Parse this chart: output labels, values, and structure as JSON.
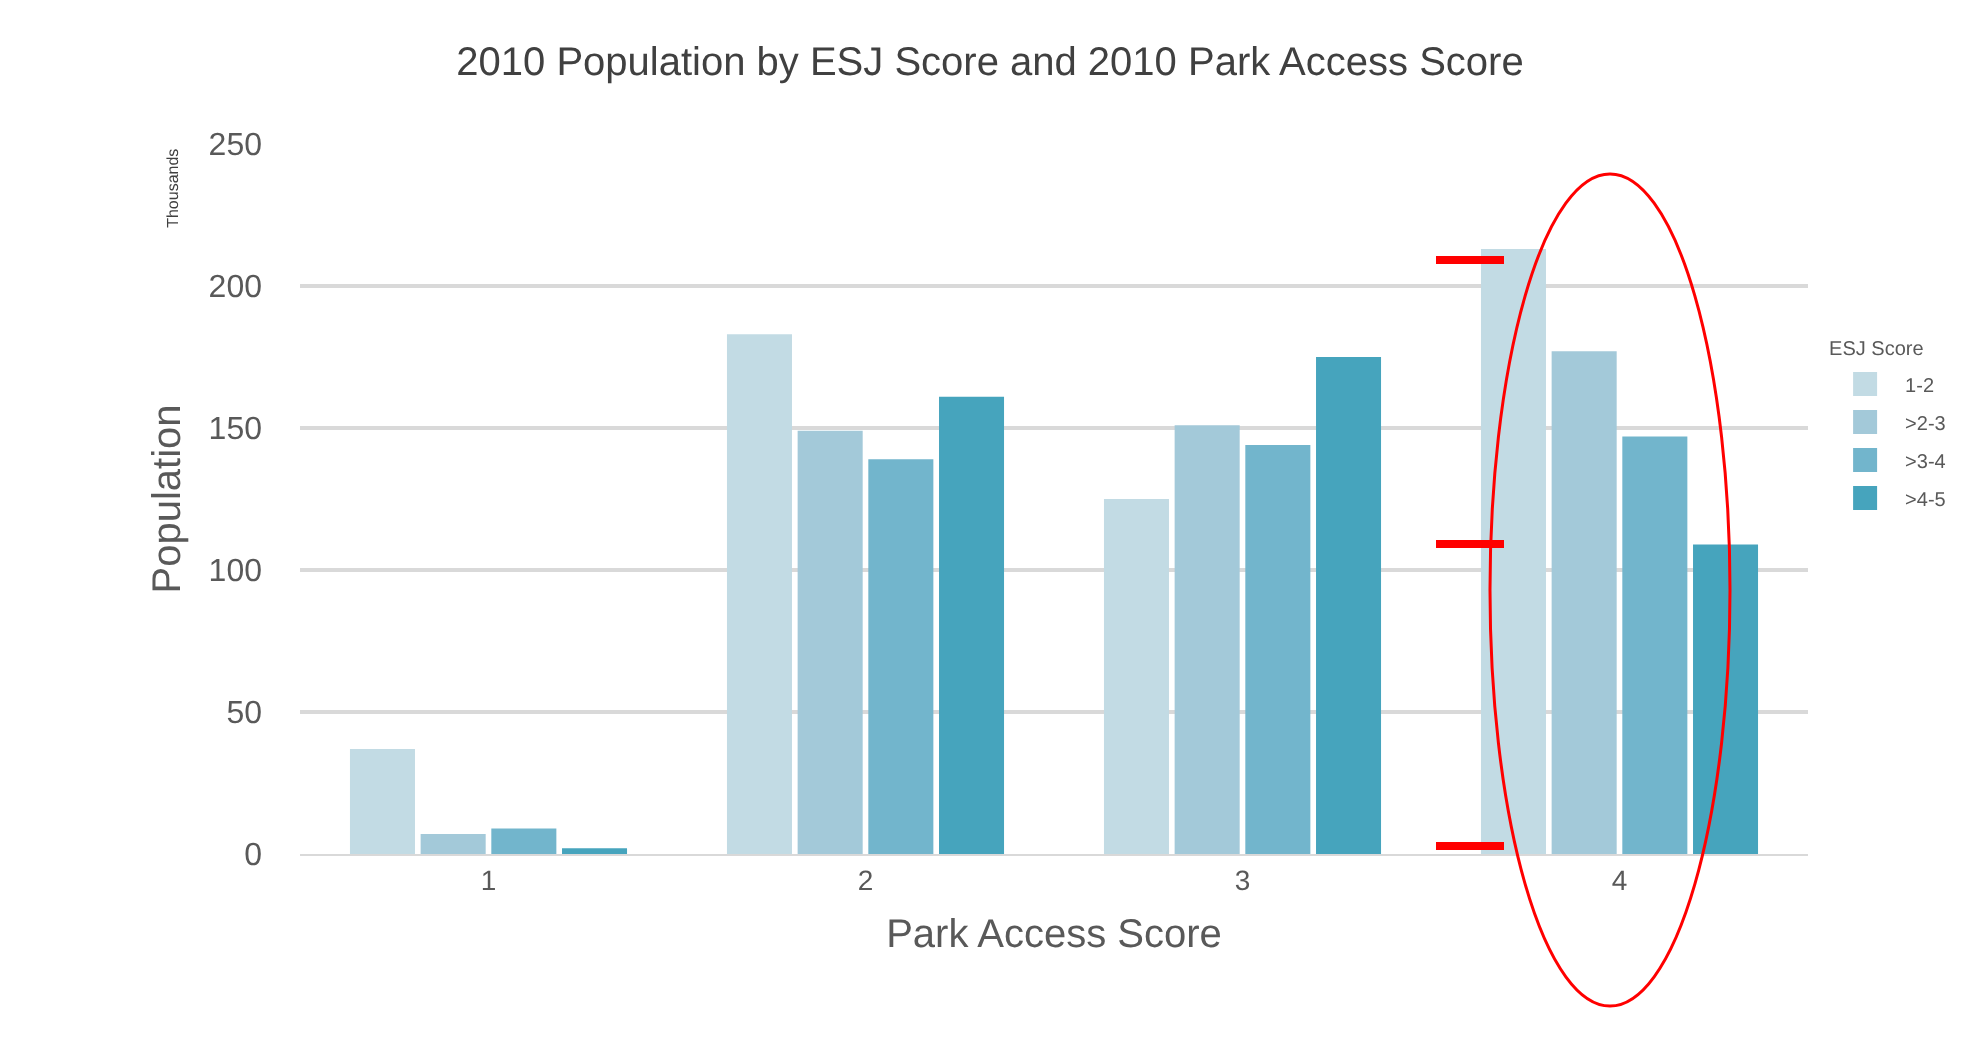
{
  "chart_data": {
    "type": "bar",
    "title": "2010 Population by ESJ Score and 2010 Park Access Score",
    "xlabel": "Park Access Score",
    "ylabel": "Population",
    "legend_title": "ESJ Score",
    "annotations": [
      "Thousands"
    ],
    "categories": [
      "1",
      "2",
      "3",
      "4"
    ],
    "series": [
      {
        "name": "1-2",
        "color": "#c2dbe4",
        "values": [
          37,
          183,
          125,
          213
        ]
      },
      {
        "name": ">2-3",
        "color": "#a3c9d9",
        "values": [
          7,
          149,
          151,
          177
        ]
      },
      {
        "name": ">3-4",
        "color": "#72b5cc",
        "values": [
          9,
          139,
          144,
          147
        ]
      },
      {
        "name": ">4-5",
        "color": "#46a4bd",
        "values": [
          2,
          161,
          175,
          109
        ]
      }
    ],
    "ylim": [
      0,
      250
    ],
    "yticks": [
      0,
      50,
      100,
      150,
      200,
      250
    ],
    "grid": "y",
    "legend": "right"
  }
}
